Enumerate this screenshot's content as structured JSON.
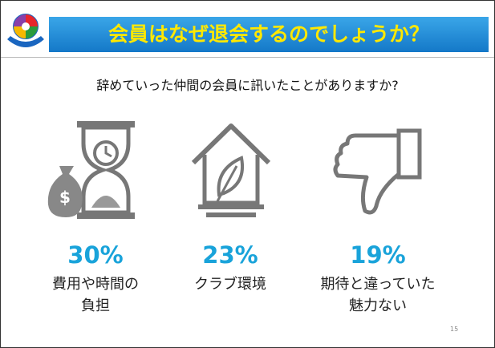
{
  "header": {
    "title": "会員はなぜ退会するのでしょうか？"
  },
  "subtitle": "辞めていった仲間の会員に訊いたことがありますか?",
  "items": [
    {
      "percent": "30%",
      "label_lines": [
        "費用や時間の",
        "負担"
      ]
    },
    {
      "percent": "23%",
      "label_lines": [
        "クラブ環境"
      ]
    },
    {
      "percent": "19%",
      "label_lines": [
        "期待と違っていた",
        "魅力ない"
      ]
    }
  ],
  "page_number": "15"
}
